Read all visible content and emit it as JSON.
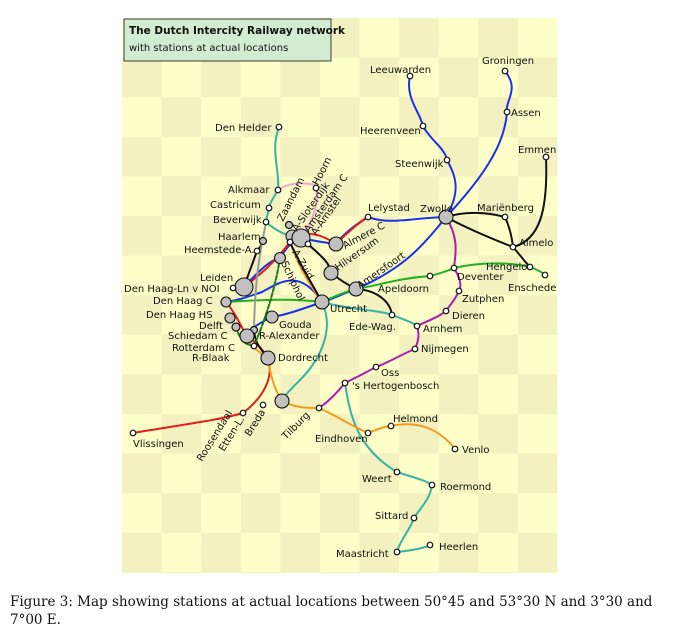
{
  "map": {
    "title": "The Dutch Intercity Railway network",
    "subtitle": "with stations at actual locations",
    "colors": {
      "board_light": "#fefec8",
      "board_dark": "#f2f1bf",
      "title_bg": "#d2ecd2",
      "blue": "#1a33e6",
      "teal": "#36b2a6",
      "red": "#e61a1a",
      "orange": "#f59a1a",
      "green": "#22b022",
      "magenta": "#b01ab0",
      "pink": "#f0a8c8",
      "black": "#111111",
      "grey": "#999999",
      "darkgreen": "#1a7a1a",
      "station_fill": "#c0c0c0"
    },
    "stations": [
      {
        "name": "Leeuwarden"
      },
      {
        "name": "Groningen"
      },
      {
        "name": "Assen"
      },
      {
        "name": "Heerenveen"
      },
      {
        "name": "Emmen"
      },
      {
        "name": "Steenwijk"
      },
      {
        "name": "Den Helder"
      },
      {
        "name": "Alkmaar"
      },
      {
        "name": "Castricum"
      },
      {
        "name": "Beverwijk"
      },
      {
        "name": "Haarlem"
      },
      {
        "name": "Heemstede-A."
      },
      {
        "name": "Zaandam"
      },
      {
        "name": "Hoorn"
      },
      {
        "name": "A-Sloterdijk"
      },
      {
        "name": "Amsterdam C"
      },
      {
        "name": "A-Amstel"
      },
      {
        "name": "A-Zuid"
      },
      {
        "name": "Schiphol"
      },
      {
        "name": "Lelystad"
      },
      {
        "name": "Almere C"
      },
      {
        "name": "Hilversum"
      },
      {
        "name": "Amersfoort"
      },
      {
        "name": "Zwolle"
      },
      {
        "name": "Mariënberg"
      },
      {
        "name": "Almelo"
      },
      {
        "name": "Hengelo"
      },
      {
        "name": "Enschede"
      },
      {
        "name": "Deventer"
      },
      {
        "name": "Apeldoorn"
      },
      {
        "name": "Zutphen"
      },
      {
        "name": "Dieren"
      },
      {
        "name": "Leiden"
      },
      {
        "name": "Den Haag-Ln v NOI"
      },
      {
        "name": "Den Haag C"
      },
      {
        "name": "Den Haag HS"
      },
      {
        "name": "Delft"
      },
      {
        "name": "Gouda"
      },
      {
        "name": "Utrecht"
      },
      {
        "name": "Schiedam C"
      },
      {
        "name": "R-Alexander"
      },
      {
        "name": "Rotterdam C"
      },
      {
        "name": "R-Blaak"
      },
      {
        "name": "Dordrecht"
      },
      {
        "name": "Ede-Wag."
      },
      {
        "name": "Arnhem"
      },
      {
        "name": "Nijmegen"
      },
      {
        "name": "Oss"
      },
      {
        "name": "'s Hertogenbosch"
      },
      {
        "name": "Vlissingen"
      },
      {
        "name": "Roosendaal"
      },
      {
        "name": "Etten-L."
      },
      {
        "name": "Breda"
      },
      {
        "name": "Tilburg"
      },
      {
        "name": "Eindhoven"
      },
      {
        "name": "Helmond"
      },
      {
        "name": "Venlo"
      },
      {
        "name": "Weert"
      },
      {
        "name": "Roermond"
      },
      {
        "name": "Sittard"
      },
      {
        "name": "Heerlen"
      },
      {
        "name": "Maastricht"
      }
    ]
  },
  "caption": "Figure 3:  Map showing stations at actual locations between 50°45 and 53°30 N and 3°30 and 7°00 E."
}
